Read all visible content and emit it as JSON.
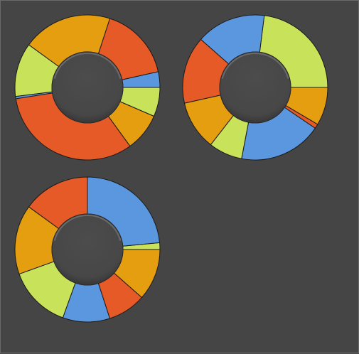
{
  "colors": {
    "background": "#454545",
    "blue": "#5b97df",
    "green": "#c8e35a",
    "orange": "#e59e10",
    "red": "#e55a27",
    "hole": "#4a4a4a"
  },
  "chart_data": [
    {
      "type": "donut",
      "start_angle_deg": 0,
      "direction": "counterclockwise",
      "slices": [
        {
          "color": "blue",
          "value": 3.5
        },
        {
          "color": "red",
          "value": 16.5
        },
        {
          "color": "orange",
          "value": 20.0
        },
        {
          "color": "green",
          "value": 12.0
        },
        {
          "color": "blue",
          "value": 0.5
        },
        {
          "color": "red",
          "value": 32.5
        },
        {
          "color": "orange",
          "value": 8.5
        },
        {
          "color": "green",
          "value": 6.5
        }
      ]
    },
    {
      "type": "donut",
      "start_angle_deg": 0,
      "direction": "counterclockwise",
      "slices": [
        {
          "color": "green",
          "value": 23.0
        },
        {
          "color": "blue",
          "value": 15.5
        },
        {
          "color": "red",
          "value": 15.0
        },
        {
          "color": "orange",
          "value": 11.0
        },
        {
          "color": "green",
          "value": 7.5
        },
        {
          "color": "blue",
          "value": 18.5
        },
        {
          "color": "red",
          "value": 1.0
        },
        {
          "color": "orange",
          "value": 8.5
        }
      ]
    },
    {
      "type": "donut",
      "start_angle_deg": 0,
      "direction": "counterclockwise",
      "slices": [
        {
          "color": "green",
          "value": 1.5
        },
        {
          "color": "blue",
          "value": 23.5
        },
        {
          "color": "red",
          "value": 15.0
        },
        {
          "color": "orange",
          "value": 15.5
        },
        {
          "color": "green",
          "value": 14.0
        },
        {
          "color": "blue",
          "value": 10.5
        },
        {
          "color": "red",
          "value": 8.5
        },
        {
          "color": "orange",
          "value": 11.5
        }
      ]
    }
  ]
}
